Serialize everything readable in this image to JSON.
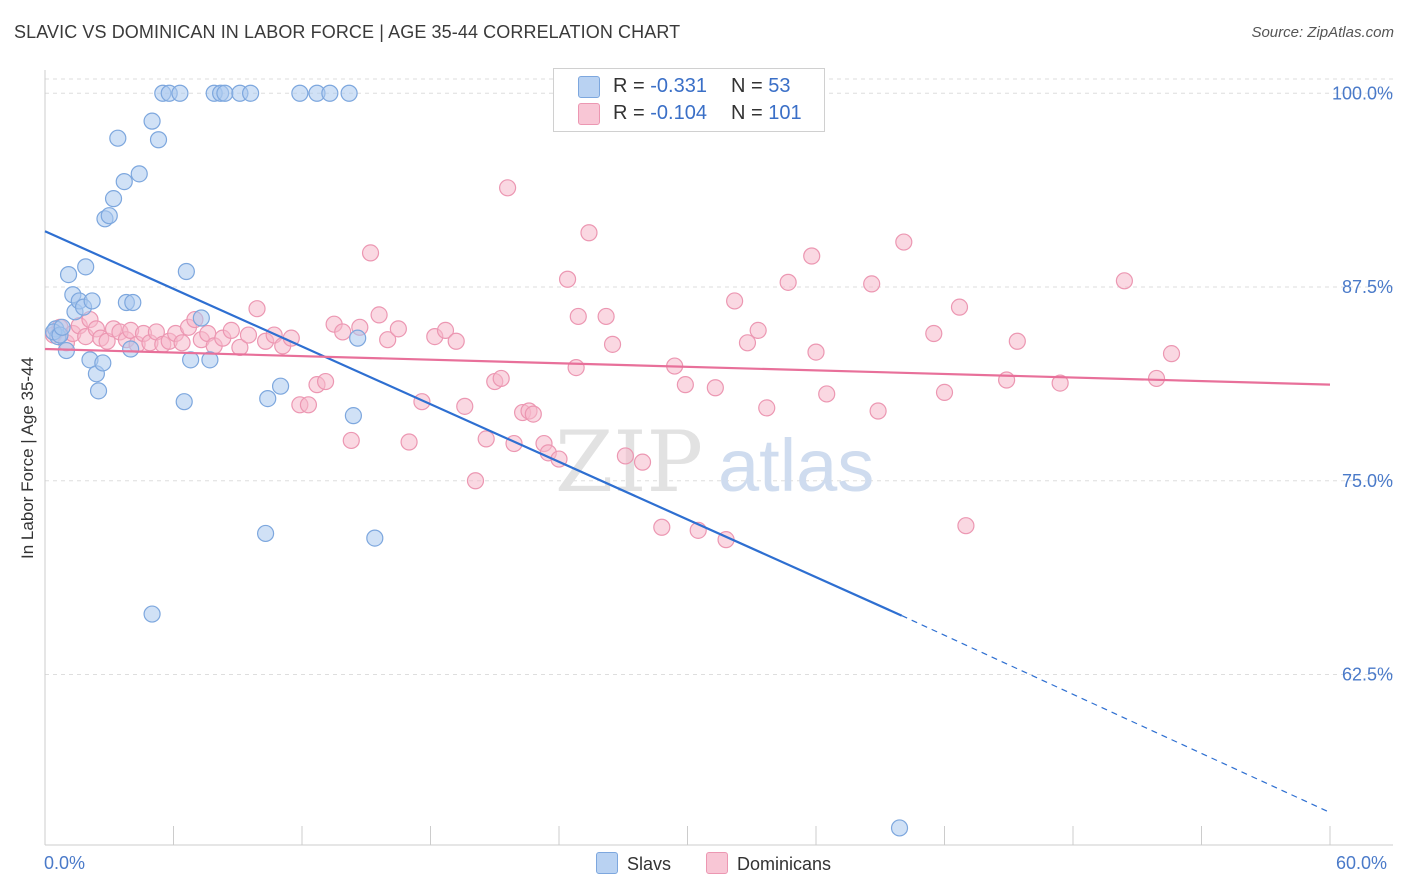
{
  "title": "SLAVIC VS DOMINICAN IN LABOR FORCE | AGE 35-44 CORRELATION CHART",
  "source": "Source: ZipAtlas.com",
  "colors": {
    "blue_fill": "#a9c8ef",
    "blue_stroke": "#7da7de",
    "blue_line": "#2e6fd1",
    "pink_fill": "#f5b8cb",
    "pink_stroke": "#ec97b2",
    "pink_line": "#e8709a",
    "tick_label": "#4a7ac9",
    "grid": "#dedede"
  },
  "legend": {
    "slavs": {
      "r_label": "R = ",
      "r_value": "-0.331",
      "n_label": "N = ",
      "n_value": "53"
    },
    "dominicans": {
      "r_label": "R = ",
      "r_value": "-0.104",
      "n_label": "N = ",
      "n_value": "101"
    }
  },
  "bottom_legend": {
    "slavs": "Slavs",
    "dominicans": "Dominicans"
  },
  "watermark": {
    "zip": "ZIP",
    "atlas": "atlas"
  },
  "chart_data": {
    "type": "scatter",
    "title": "SLAVIC VS DOMINICAN IN LABOR FORCE | AGE 35-44 CORRELATION CHART",
    "xlabel": "",
    "ylabel": "In Labor Force | Age 35-44",
    "xlim": [
      0,
      60
    ],
    "ylim": [
      51.5,
      101.5
    ],
    "x_tick_labels": [
      "0.0%",
      "60.0%"
    ],
    "y_ticks": [
      62.5,
      75.0,
      87.5,
      100.0
    ],
    "y_tick_labels": [
      "62.5%",
      "75.0%",
      "87.5%",
      "100.0%"
    ],
    "grid": true,
    "series": [
      {
        "name": "Slavs",
        "r": -0.331,
        "n": 53,
        "trend": {
          "x0": 0,
          "y0": 91.1,
          "x1": 40,
          "y1": 66.3,
          "dash_to_x": 60,
          "dash_to_y": 53.6
        },
        "points": [
          [
            0.5,
            84.8
          ],
          [
            0.6,
            84.3
          ],
          [
            0.4,
            84.6
          ],
          [
            0.7,
            84.4
          ],
          [
            0.8,
            84.9
          ],
          [
            1.0,
            83.4
          ],
          [
            1.1,
            88.3
          ],
          [
            1.3,
            87.0
          ],
          [
            1.4,
            85.9
          ],
          [
            1.6,
            86.6
          ],
          [
            1.8,
            86.2
          ],
          [
            1.9,
            88.8
          ],
          [
            2.1,
            82.8
          ],
          [
            2.2,
            86.6
          ],
          [
            2.4,
            81.9
          ],
          [
            2.5,
            80.8
          ],
          [
            2.7,
            82.6
          ],
          [
            2.8,
            91.9
          ],
          [
            3.0,
            92.1
          ],
          [
            3.2,
            93.2
          ],
          [
            3.4,
            97.1
          ],
          [
            3.7,
            94.3
          ],
          [
            3.8,
            86.5
          ],
          [
            4.1,
            86.5
          ],
          [
            4.0,
            83.5
          ],
          [
            4.4,
            94.8
          ],
          [
            5.0,
            98.2
          ],
          [
            5.3,
            97.0
          ],
          [
            5.5,
            100.0
          ],
          [
            5.8,
            100.0
          ],
          [
            6.3,
            100.0
          ],
          [
            6.5,
            80.1
          ],
          [
            6.8,
            82.8
          ],
          [
            6.6,
            88.5
          ],
          [
            7.3,
            85.5
          ],
          [
            7.7,
            82.8
          ],
          [
            7.9,
            100.0
          ],
          [
            8.2,
            100.0
          ],
          [
            8.4,
            100.0
          ],
          [
            9.1,
            100.0
          ],
          [
            9.6,
            100.0
          ],
          [
            10.4,
            80.3
          ],
          [
            11.0,
            81.1
          ],
          [
            11.9,
            100.0
          ],
          [
            12.7,
            100.0
          ],
          [
            13.3,
            100.0
          ],
          [
            14.2,
            100.0
          ],
          [
            10.3,
            71.6
          ],
          [
            14.4,
            79.2
          ],
          [
            15.4,
            71.3
          ],
          [
            14.6,
            84.2
          ],
          [
            5.0,
            66.4
          ],
          [
            39.9,
            52.6
          ]
        ]
      },
      {
        "name": "Dominicans",
        "r": -0.104,
        "n": 101,
        "trend": {
          "x0": 0,
          "y0": 83.5,
          "x1": 60,
          "y1": 81.2
        },
        "points": [
          [
            0.4,
            84.4
          ],
          [
            0.7,
            84.9
          ],
          [
            1.0,
            83.9
          ],
          [
            1.3,
            84.5
          ],
          [
            1.6,
            85.0
          ],
          [
            1.9,
            84.3
          ],
          [
            2.1,
            85.4
          ],
          [
            2.4,
            84.8
          ],
          [
            2.6,
            84.2
          ],
          [
            2.9,
            84.0
          ],
          [
            3.2,
            84.8
          ],
          [
            3.5,
            84.6
          ],
          [
            3.8,
            84.1
          ],
          [
            4.0,
            84.7
          ],
          [
            4.3,
            83.8
          ],
          [
            4.6,
            84.5
          ],
          [
            4.9,
            83.9
          ],
          [
            5.2,
            84.6
          ],
          [
            5.5,
            83.8
          ],
          [
            5.8,
            84.0
          ],
          [
            6.1,
            84.5
          ],
          [
            6.4,
            83.9
          ],
          [
            6.7,
            84.9
          ],
          [
            7.0,
            85.4
          ],
          [
            7.3,
            84.1
          ],
          [
            7.6,
            84.5
          ],
          [
            7.9,
            83.7
          ],
          [
            8.3,
            84.2
          ],
          [
            8.7,
            84.7
          ],
          [
            9.1,
            83.6
          ],
          [
            9.5,
            84.4
          ],
          [
            9.9,
            86.1
          ],
          [
            10.3,
            84.0
          ],
          [
            10.7,
            84.4
          ],
          [
            11.1,
            83.7
          ],
          [
            11.5,
            84.2
          ],
          [
            11.9,
            79.9
          ],
          [
            12.3,
            79.9
          ],
          [
            12.7,
            81.2
          ],
          [
            13.1,
            81.4
          ],
          [
            13.5,
            85.1
          ],
          [
            13.9,
            84.6
          ],
          [
            14.3,
            77.6
          ],
          [
            14.7,
            84.9
          ],
          [
            15.2,
            89.7
          ],
          [
            15.6,
            85.7
          ],
          [
            16.0,
            84.1
          ],
          [
            16.5,
            84.8
          ],
          [
            17.0,
            77.5
          ],
          [
            17.6,
            80.1
          ],
          [
            18.2,
            84.3
          ],
          [
            18.7,
            84.7
          ],
          [
            19.2,
            84.0
          ],
          [
            19.6,
            79.8
          ],
          [
            20.1,
            75.0
          ],
          [
            20.6,
            77.7
          ],
          [
            21.0,
            81.4
          ],
          [
            21.3,
            81.6
          ],
          [
            21.6,
            93.9
          ],
          [
            21.9,
            77.4
          ],
          [
            22.3,
            79.4
          ],
          [
            22.6,
            79.5
          ],
          [
            22.8,
            79.3
          ],
          [
            23.3,
            77.4
          ],
          [
            23.5,
            76.8
          ],
          [
            24.0,
            76.4
          ],
          [
            24.4,
            88.0
          ],
          [
            24.8,
            82.3
          ],
          [
            24.9,
            85.6
          ],
          [
            25.4,
            91.0
          ],
          [
            26.2,
            85.6
          ],
          [
            26.5,
            83.8
          ],
          [
            27.1,
            76.6
          ],
          [
            27.9,
            76.2
          ],
          [
            28.8,
            72.0
          ],
          [
            29.4,
            82.4
          ],
          [
            29.9,
            81.2
          ],
          [
            30.5,
            71.8
          ],
          [
            31.3,
            81.0
          ],
          [
            31.8,
            71.2
          ],
          [
            32.2,
            86.6
          ],
          [
            32.8,
            83.9
          ],
          [
            33.3,
            84.7
          ],
          [
            33.7,
            79.7
          ],
          [
            34.7,
            87.8
          ],
          [
            35.8,
            89.5
          ],
          [
            36.0,
            83.3
          ],
          [
            36.5,
            80.6
          ],
          [
            38.6,
            87.7
          ],
          [
            38.9,
            79.5
          ],
          [
            40.1,
            90.4
          ],
          [
            41.5,
            84.5
          ],
          [
            42.0,
            80.7
          ],
          [
            42.7,
            86.2
          ],
          [
            43.0,
            72.1
          ],
          [
            44.9,
            81.5
          ],
          [
            45.4,
            84.0
          ],
          [
            47.4,
            81.3
          ],
          [
            50.4,
            87.9
          ],
          [
            51.9,
            81.6
          ],
          [
            52.6,
            83.2
          ]
        ]
      }
    ]
  }
}
